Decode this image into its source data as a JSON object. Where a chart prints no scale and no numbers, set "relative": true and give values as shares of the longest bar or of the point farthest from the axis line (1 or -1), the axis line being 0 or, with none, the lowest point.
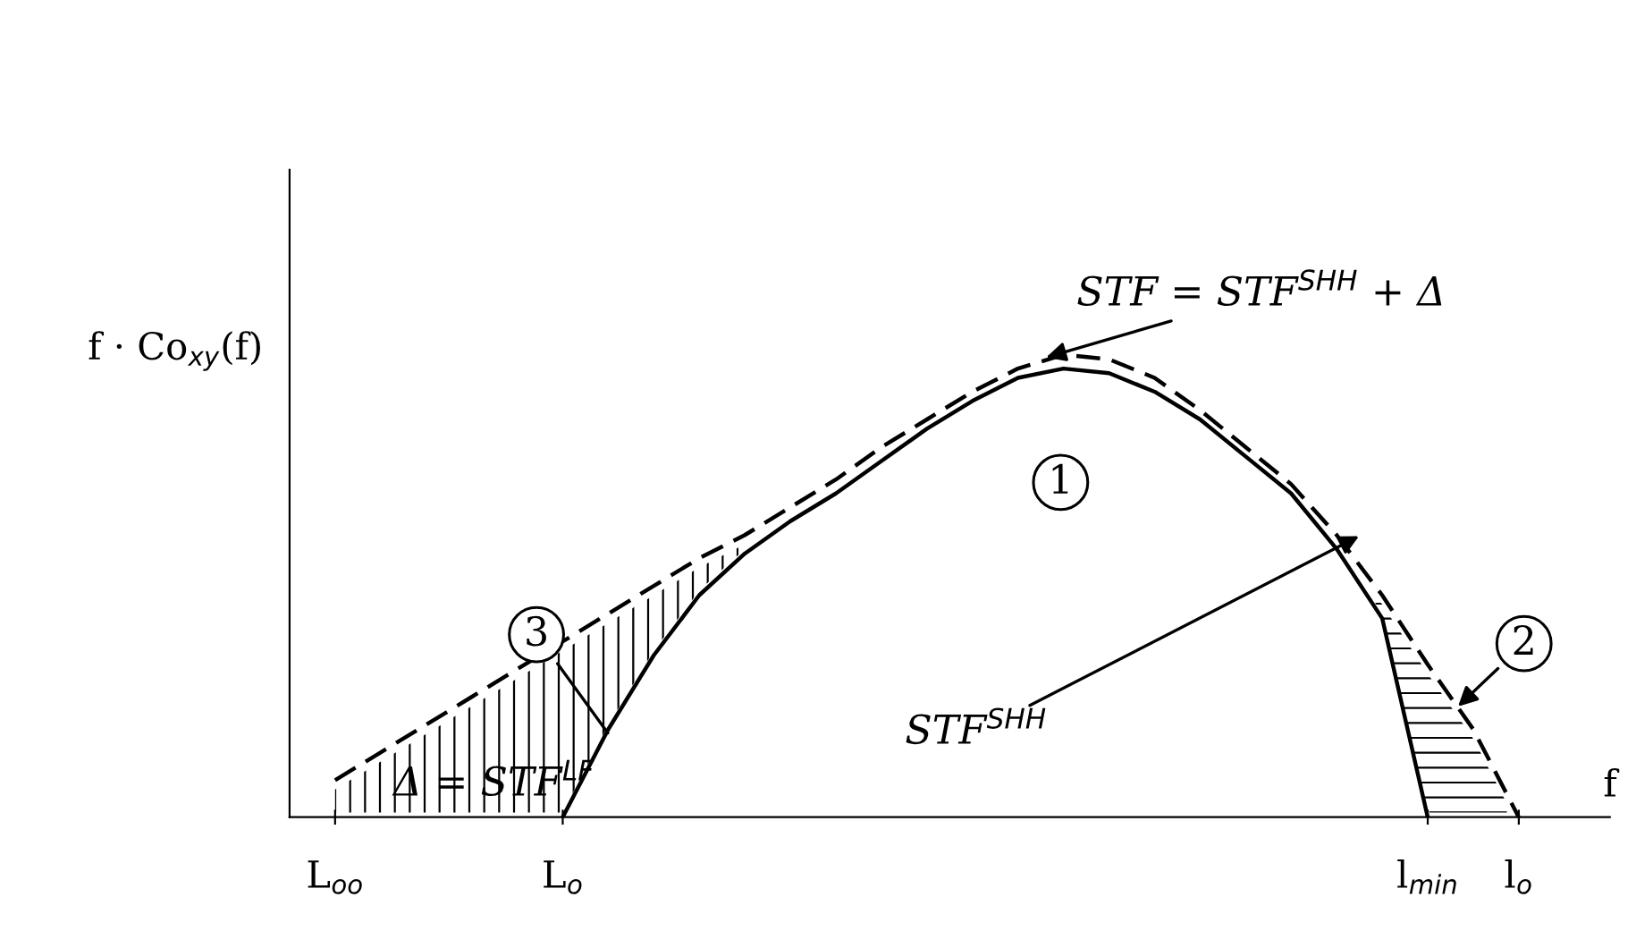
{
  "chart_data": {
    "type": "line",
    "relative": true,
    "ylabel": "f · Co$_{xy}$(f)",
    "xlabel": "f",
    "categories": [
      "L$_{oo}$",
      null,
      null,
      null,
      null,
      "L$_{o}$",
      null,
      null,
      null,
      null,
      null,
      null,
      null,
      null,
      null,
      null,
      null,
      null,
      null,
      null,
      null,
      null,
      null,
      null,
      "l$_{min}$",
      null,
      "l$_{o}$"
    ],
    "series": [
      {
        "color": "#000000",
        "line_style": "solid",
        "values": [
          null,
          null,
          null,
          null,
          null,
          0,
          0.19,
          0.35,
          0.48,
          0.57,
          0.64,
          0.7,
          0.77,
          0.84,
          0.9,
          0.95,
          0.97,
          0.96,
          0.92,
          0.86,
          0.78,
          0.7,
          0.58,
          0.43,
          0,
          null,
          null
        ]
      },
      {
        "color": "#000000",
        "line_style": "dashed",
        "values": [
          0.08,
          0.14,
          0.2,
          0.26,
          0.32,
          0.38,
          0.44,
          0.5,
          0.56,
          0.61,
          0.67,
          0.73,
          0.8,
          0.86,
          0.92,
          0.97,
          1,
          0.99,
          0.95,
          0.88,
          0.8,
          0.72,
          0.61,
          0.48,
          0.33,
          0.19,
          0
        ]
      }
    ],
    "annotations": [
      "STF = STF$^{SHH}$ + Δ",
      "STF$^{SHH}$",
      "1",
      "2",
      "3",
      "Δ = STF$^{LF}$"
    ],
    "legend": false,
    "grid": false
  }
}
